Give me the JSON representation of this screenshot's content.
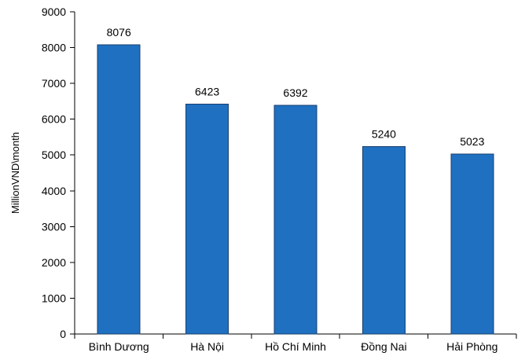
{
  "chart_data": {
    "type": "bar",
    "title": "",
    "xlabel": "",
    "ylabel": "MillionVND\\month",
    "categories": [
      "Bình Dương",
      "Hà Nội",
      "Hồ Chí Minh",
      "Đồng Nai",
      "Hải Phòng"
    ],
    "values": [
      8076,
      6423,
      6392,
      5240,
      5023
    ],
    "ylim": [
      0,
      9000
    ],
    "yticks": [
      0,
      1000,
      2000,
      3000,
      4000,
      5000,
      6000,
      7000,
      8000,
      9000
    ],
    "grid": false,
    "legend": "none",
    "data_labels": true,
    "bar_color": "#1f70c1"
  }
}
